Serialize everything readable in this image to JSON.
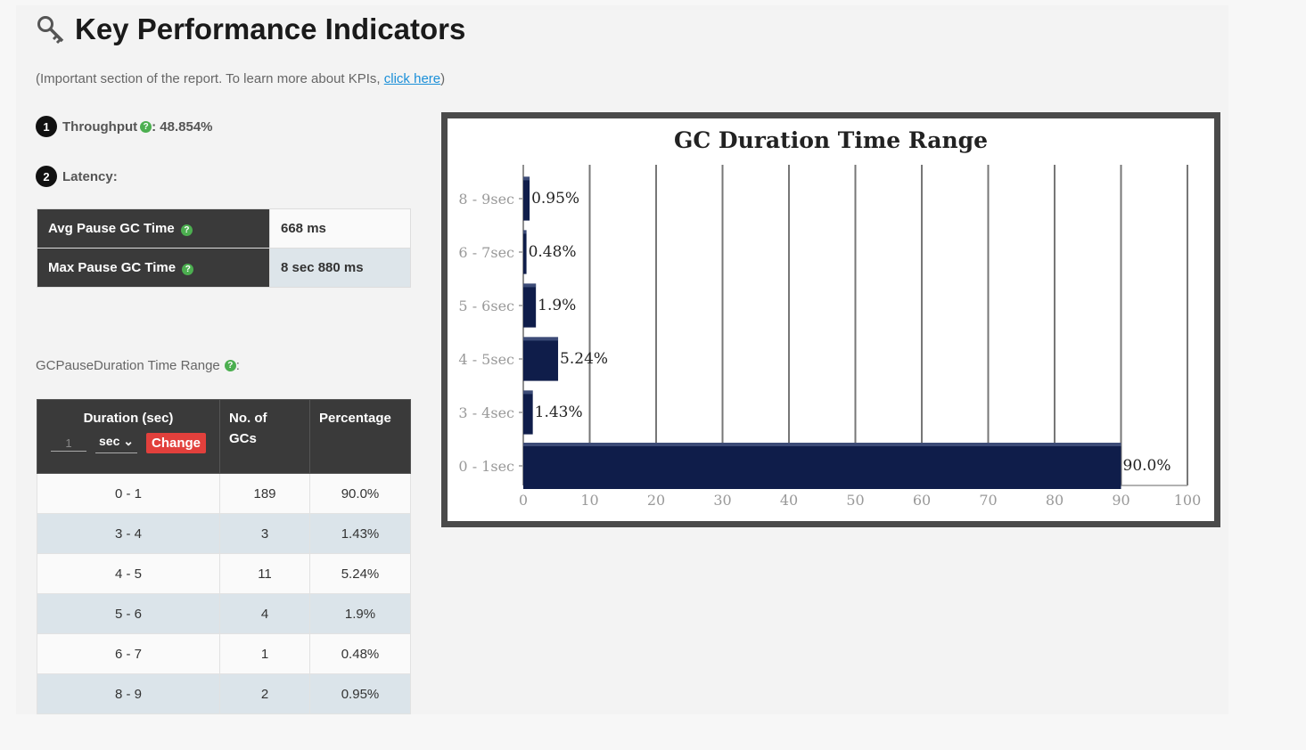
{
  "header": {
    "title": "Key Performance Indicators",
    "subtitle_prefix": "(Important section of the report. To learn more about KPIs,",
    "subtitle_link": "click here",
    "subtitle_suffix": ")"
  },
  "throughput": {
    "badge": "1",
    "label": "Throughput",
    "value": " : 48.854%"
  },
  "latency": {
    "badge": "2",
    "label": "Latency:",
    "rows": [
      {
        "label": "Avg Pause GC Time",
        "value": "668 ms"
      },
      {
        "label": "Max Pause GC Time",
        "value": "8 sec 880 ms"
      }
    ]
  },
  "range_section": {
    "label": "GCPauseDuration Time Range",
    "suffix": ":",
    "headers": {
      "duration": "Duration (sec)",
      "count_line1": "No. of",
      "count_line2": "GCs",
      "percentage": "Percentage"
    },
    "unit_input_value": "1",
    "unit_select": "sec",
    "change_button": "Change",
    "rows": [
      {
        "duration": "0 - 1",
        "count": "189",
        "percentage": "90.0%"
      },
      {
        "duration": "3 - 4",
        "count": "3",
        "percentage": "1.43%"
      },
      {
        "duration": "4 - 5",
        "count": "11",
        "percentage": "5.24%"
      },
      {
        "duration": "5 - 6",
        "count": "4",
        "percentage": "1.9%"
      },
      {
        "duration": "6 - 7",
        "count": "1",
        "percentage": "0.48%"
      },
      {
        "duration": "8 - 9",
        "count": "2",
        "percentage": "0.95%"
      }
    ]
  },
  "chart_data": {
    "type": "bar",
    "orientation": "horizontal",
    "title": "GC Duration Time Range",
    "categories": [
      "8 - 9sec",
      "6 - 7sec",
      "5 - 6sec",
      "4 - 5sec",
      "3 - 4sec",
      "0 - 1sec"
    ],
    "values": [
      0.95,
      0.48,
      1.9,
      5.24,
      1.43,
      90.0
    ],
    "value_labels": [
      "0.95%",
      "0.48%",
      "1.9%",
      "5.24%",
      "1.43%",
      "90.0%"
    ],
    "xlim": [
      0,
      100
    ],
    "xticks": [
      "0",
      "10",
      "20",
      "30",
      "40",
      "50",
      "60",
      "70",
      "80",
      "90",
      "100"
    ],
    "grid": true,
    "bar_color": "#0f1d4a"
  }
}
